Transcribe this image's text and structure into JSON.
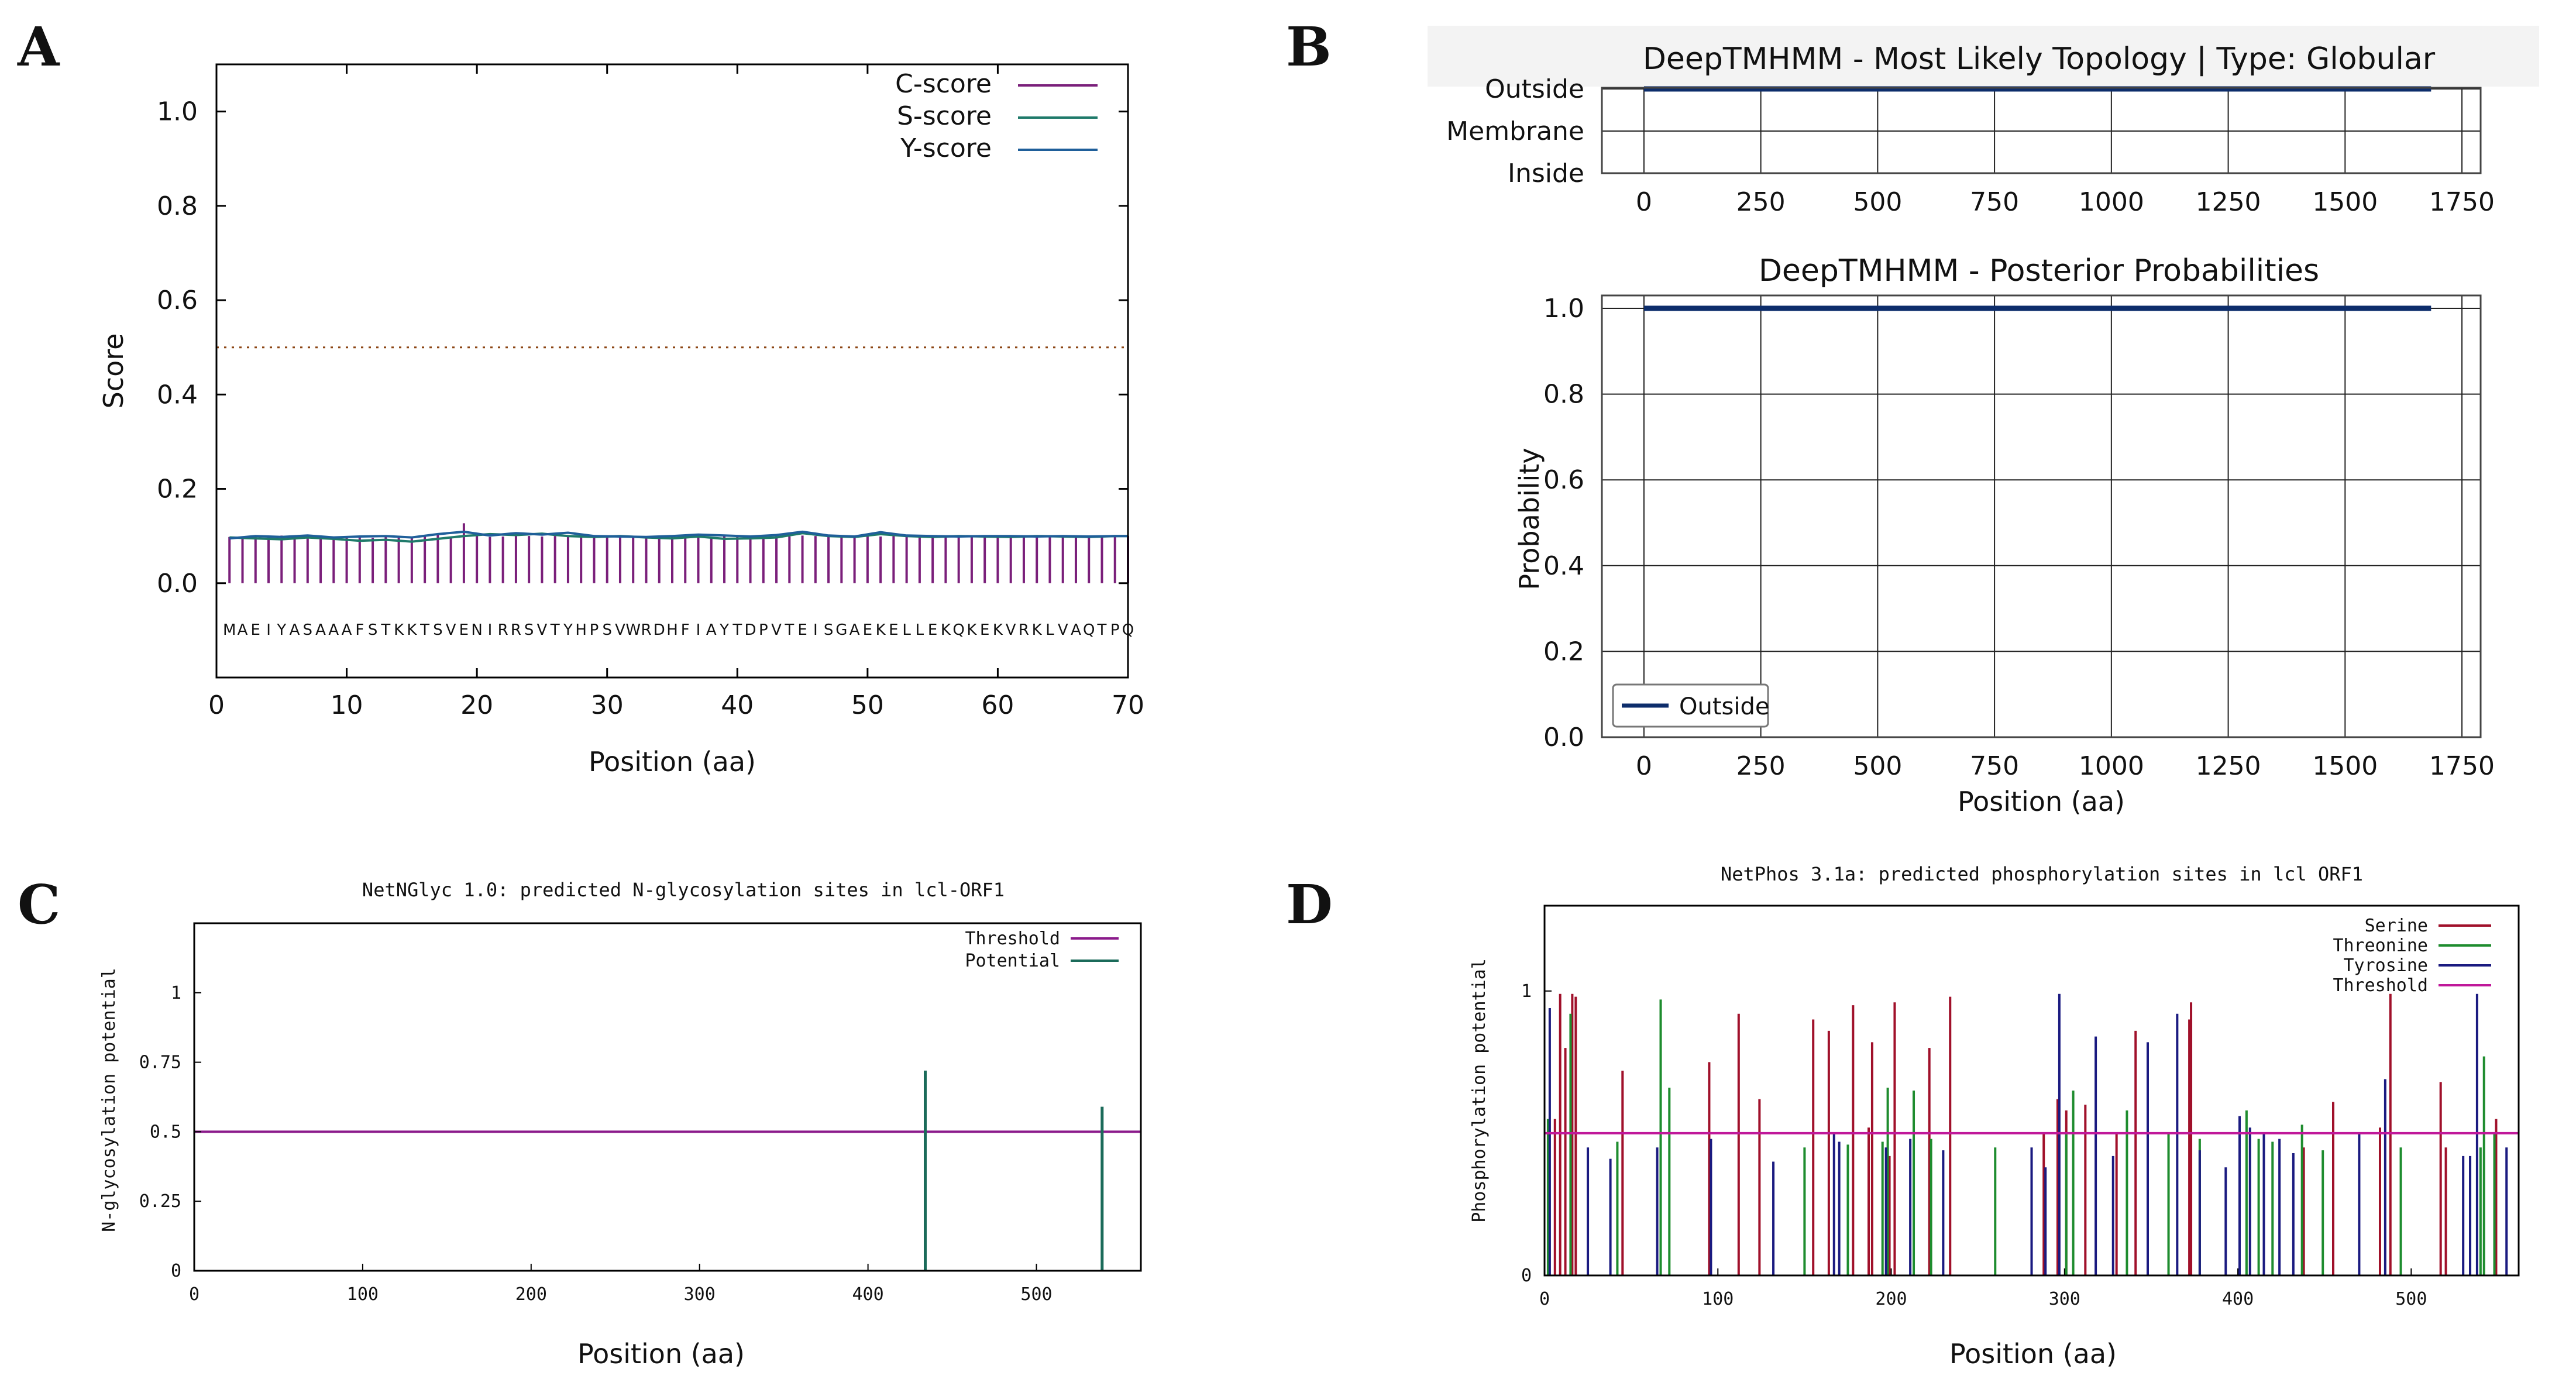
{
  "panels": {
    "a": {
      "label": "A"
    },
    "b": {
      "label": "B"
    },
    "c": {
      "label": "C"
    },
    "d": {
      "label": "D"
    }
  },
  "chart_data": [
    {
      "id": "A",
      "type": "line",
      "title": "",
      "xlabel": "Position (aa)",
      "ylabel": "Score",
      "xlim": [
        0,
        70
      ],
      "ylim": [
        -0.2,
        1.1
      ],
      "xticks": [
        0,
        10,
        20,
        30,
        40,
        50,
        60,
        70
      ],
      "yticks": [
        0.0,
        0.2,
        0.4,
        0.6,
        0.8,
        1.0
      ],
      "yticklabels": [
        "0.0",
        "0.2",
        "0.4",
        "0.6",
        "0.8",
        "1.0"
      ],
      "cutoff": 0.5,
      "sequence": "MAEIYASAAAFSTKKTSVENIRRSVTYHPSVWRDHFIAYTDPVTEISGAEKELLEKQKEKVRKLVAQTPQ",
      "legend": [
        "C-score",
        "S-score",
        "Y-score"
      ],
      "colors": {
        "C-score": "#7a1f7a",
        "S-score": "#1f7a6a",
        "Y-score": "#1f5f9a",
        "cutoff": "#8b4513"
      },
      "series": [
        {
          "name": "C-score",
          "x": [
            1,
            2,
            3,
            4,
            5,
            6,
            7,
            8,
            9,
            10,
            11,
            12,
            13,
            14,
            15,
            16,
            17,
            18,
            19,
            20,
            21,
            22,
            23,
            24,
            25,
            26,
            27,
            28,
            29,
            30,
            31,
            32,
            33,
            34,
            35,
            36,
            37,
            38,
            39,
            40,
            41,
            42,
            43,
            44,
            45,
            46,
            47,
            48,
            49,
            50,
            51,
            52,
            53,
            54,
            55,
            56,
            57,
            58,
            59,
            60,
            61,
            62,
            63,
            64,
            65,
            66,
            67,
            68,
            69,
            70
          ],
          "values": [
            0.098,
            0.098,
            0.099,
            0.097,
            0.101,
            0.097,
            0.098,
            0.1,
            0.098,
            0.097,
            0.098,
            0.096,
            0.098,
            0.097,
            0.099,
            0.1,
            0.102,
            0.098,
            0.127,
            0.102,
            0.098,
            0.099,
            0.101,
            0.1,
            0.099,
            0.1,
            0.098,
            0.099,
            0.1,
            0.099,
            0.098,
            0.1,
            0.099,
            0.098,
            0.1,
            0.099,
            0.1,
            0.098,
            0.099,
            0.1,
            0.099,
            0.098,
            0.1,
            0.099,
            0.101,
            0.1,
            0.099,
            0.1,
            0.099,
            0.1,
            0.099,
            0.1,
            0.099,
            0.1,
            0.099,
            0.098,
            0.1,
            0.099,
            0.1,
            0.099,
            0.1,
            0.099,
            0.1,
            0.099,
            0.1,
            0.099,
            0.1,
            0.099,
            0.1,
            0.1
          ]
        },
        {
          "name": "S-score",
          "x": [
            1,
            3,
            5,
            7,
            9,
            11,
            13,
            15,
            17,
            19,
            21,
            23,
            25,
            27,
            29,
            31,
            33,
            35,
            37,
            39,
            41,
            43,
            45,
            47,
            49,
            51,
            53,
            55,
            57,
            59,
            61,
            63,
            65,
            67,
            69,
            70
          ],
          "values": [
            0.097,
            0.095,
            0.093,
            0.097,
            0.094,
            0.09,
            0.092,
            0.088,
            0.094,
            0.1,
            0.104,
            0.102,
            0.105,
            0.1,
            0.098,
            0.1,
            0.097,
            0.095,
            0.099,
            0.094,
            0.095,
            0.097,
            0.106,
            0.1,
            0.098,
            0.104,
            0.1,
            0.098,
            0.1,
            0.099,
            0.098,
            0.1,
            0.099,
            0.098,
            0.1,
            0.1
          ]
        },
        {
          "name": "Y-score",
          "x": [
            1,
            3,
            5,
            7,
            9,
            11,
            13,
            15,
            17,
            19,
            21,
            23,
            25,
            27,
            29,
            31,
            33,
            35,
            37,
            39,
            41,
            43,
            45,
            47,
            49,
            51,
            53,
            55,
            57,
            59,
            61,
            63,
            65,
            67,
            69,
            70
          ],
          "values": [
            0.095,
            0.1,
            0.098,
            0.101,
            0.097,
            0.099,
            0.1,
            0.097,
            0.104,
            0.109,
            0.101,
            0.106,
            0.103,
            0.107,
            0.1,
            0.099,
            0.098,
            0.1,
            0.103,
            0.101,
            0.099,
            0.102,
            0.109,
            0.101,
            0.099,
            0.108,
            0.101,
            0.1,
            0.099,
            0.1,
            0.1,
            0.099,
            0.1,
            0.099,
            0.1,
            0.1
          ]
        }
      ]
    },
    {
      "id": "B1",
      "type": "line",
      "title": "DeepTMHMM - Most Likely Topology | Type: Globular",
      "xlabel": "",
      "ylabel": "",
      "xlim": [
        -90,
        1790
      ],
      "xticks": [
        0,
        250,
        500,
        750,
        1000,
        1250,
        1500,
        1750
      ],
      "ycategories": [
        "Outside",
        "Membrane",
        "Inside"
      ],
      "series": [
        {
          "name": "Outside",
          "x": [
            0,
            1684
          ],
          "values": [
            "Outside",
            "Outside"
          ],
          "color": "#0d2d6b"
        }
      ]
    },
    {
      "id": "B2",
      "type": "line",
      "title": "DeepTMHMM - Posterior Probabilities",
      "xlabel": "Position (aa)",
      "ylabel": "Probability",
      "xlim": [
        -90,
        1790
      ],
      "ylim": [
        0.0,
        1.03
      ],
      "xticks": [
        0,
        250,
        500,
        750,
        1000,
        1250,
        1500,
        1750
      ],
      "yticks": [
        0.0,
        0.2,
        0.4,
        0.6,
        0.8,
        1.0
      ],
      "yticklabels": [
        "0.0",
        "0.2",
        "0.4",
        "0.6",
        "0.8",
        "1.0"
      ],
      "legend": [
        "Outside"
      ],
      "series": [
        {
          "name": "Outside",
          "x": [
            0,
            1684
          ],
          "values": [
            1.0,
            1.0
          ],
          "color": "#0d2d6b"
        }
      ]
    },
    {
      "id": "C",
      "type": "bar",
      "title": "NetNGlyc 1.0: predicted N-glycosylation sites in lcl-ORF1",
      "xlabel": "Position (aa)",
      "ylabel": "N-glycosylation potential",
      "xlim": [
        0,
        562
      ],
      "ylim": [
        0,
        1.25
      ],
      "xticks": [
        0,
        100,
        200,
        300,
        400,
        500
      ],
      "yticks": [
        0,
        0.25,
        0.5,
        0.75,
        1
      ],
      "yticklabels": [
        "0",
        "0.25",
        "0.5",
        "0.75",
        "1"
      ],
      "threshold": 0.5,
      "legend": [
        "Threshold",
        "Potential"
      ],
      "colors": {
        "Threshold": "#8b1a8b",
        "Potential": "#1b6b5a"
      },
      "series": [
        {
          "name": "Potential",
          "x": [
            434,
            539
          ],
          "values": [
            0.72,
            0.59
          ]
        }
      ]
    },
    {
      "id": "D",
      "type": "bar",
      "title": "NetPhos 3.1a: predicted phosphorylation sites in lcl ORF1",
      "xlabel": "Position (aa)",
      "ylabel": "Phosphorylation potential",
      "xlim": [
        0,
        562
      ],
      "ylim": [
        0,
        1.3
      ],
      "xticks": [
        0,
        100,
        200,
        300,
        400,
        500
      ],
      "yticks": [
        0,
        1
      ],
      "yticklabels": [
        "0",
        "1"
      ],
      "threshold": 0.5,
      "legend": [
        "Serine",
        "Threonine",
        "Tyrosine",
        "Threshold"
      ],
      "colors": {
        "Serine": "#a0102a",
        "Threonine": "#1e8c2e",
        "Tyrosine": "#1a1a80",
        "Threshold": "#c0189a"
      },
      "series": [
        {
          "name": "Serine",
          "x": [
            6,
            9,
            12,
            16,
            18,
            45,
            95,
            112,
            124,
            155,
            164,
            178,
            187,
            189,
            199,
            202,
            222,
            234,
            288,
            296,
            301,
            312,
            330,
            341,
            372,
            373,
            438,
            455,
            482,
            488,
            517,
            520,
            549
          ],
          "values": [
            0.55,
            0.99,
            0.8,
            0.99,
            0.98,
            0.72,
            0.75,
            0.92,
            0.62,
            0.9,
            0.86,
            0.95,
            0.52,
            0.82,
            0.42,
            0.96,
            0.8,
            0.98,
            0.5,
            0.62,
            0.58,
            0.6,
            0.5,
            0.86,
            0.9,
            0.96,
            0.45,
            0.61,
            0.52,
            0.99,
            0.68,
            0.45,
            0.55
          ]
        },
        {
          "name": "Threonine",
          "x": [
            2,
            15,
            42,
            67,
            72,
            150,
            175,
            195,
            198,
            213,
            223,
            260,
            301,
            305,
            336,
            360,
            378,
            405,
            412,
            420,
            437,
            449,
            494,
            540,
            542,
            548
          ],
          "values": [
            0.55,
            0.92,
            0.47,
            0.97,
            0.66,
            0.45,
            0.46,
            0.47,
            0.66,
            0.65,
            0.48,
            0.45,
            0.5,
            0.65,
            0.58,
            0.5,
            0.48,
            0.58,
            0.48,
            0.47,
            0.53,
            0.44,
            0.45,
            0.45,
            0.77,
            0.5
          ]
        },
        {
          "name": "Tyrosine",
          "x": [
            3,
            25,
            38,
            65,
            96,
            132,
            167,
            170,
            197,
            211,
            230,
            281,
            289,
            297,
            318,
            328,
            348,
            365,
            378,
            393,
            401,
            407,
            415,
            424,
            432,
            470,
            485,
            530,
            534,
            538,
            555
          ],
          "values": [
            0.94,
            0.45,
            0.41,
            0.45,
            0.48,
            0.4,
            0.5,
            0.47,
            0.45,
            0.48,
            0.44,
            0.45,
            0.38,
            0.99,
            0.84,
            0.42,
            0.82,
            0.92,
            0.44,
            0.38,
            0.56,
            0.52,
            0.5,
            0.48,
            0.43,
            0.5,
            0.69,
            0.42,
            0.42,
            0.99,
            0.45
          ]
        }
      ]
    }
  ]
}
